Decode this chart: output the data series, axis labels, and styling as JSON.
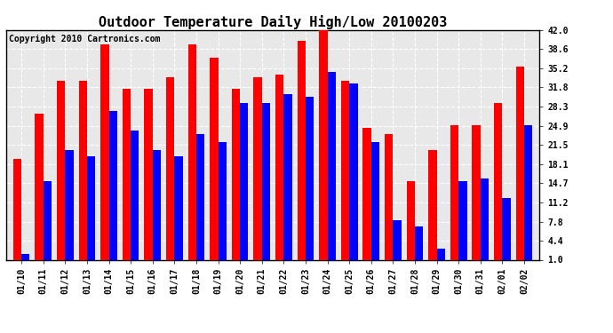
{
  "title": "Outdoor Temperature Daily High/Low 20100203",
  "copyright": "Copyright 2010 Cartronics.com",
  "dates": [
    "01/10",
    "01/11",
    "01/12",
    "01/13",
    "01/14",
    "01/15",
    "01/16",
    "01/17",
    "01/18",
    "01/19",
    "01/20",
    "01/21",
    "01/22",
    "01/23",
    "01/24",
    "01/25",
    "01/26",
    "01/27",
    "01/28",
    "01/29",
    "01/30",
    "01/31",
    "02/01",
    "02/02"
  ],
  "highs": [
    19.0,
    27.0,
    33.0,
    33.0,
    39.5,
    31.5,
    31.5,
    33.5,
    39.5,
    37.0,
    31.5,
    33.5,
    34.0,
    40.0,
    42.5,
    33.0,
    24.5,
    23.5,
    15.0,
    20.5,
    25.0,
    25.0,
    29.0,
    35.5
  ],
  "lows": [
    2.0,
    15.0,
    20.5,
    19.5,
    27.5,
    24.0,
    20.5,
    19.5,
    23.5,
    22.0,
    29.0,
    29.0,
    30.5,
    30.0,
    34.5,
    32.5,
    22.0,
    8.0,
    7.0,
    3.0,
    15.0,
    15.5,
    12.0,
    25.0
  ],
  "high_color": "#ff0000",
  "low_color": "#0000ff",
  "bg_color": "#ffffff",
  "plot_bg_color": "#e8e8e8",
  "grid_color": "#ffffff",
  "ylim_min": 1.0,
  "ylim_max": 42.0,
  "yticks": [
    1.0,
    4.4,
    7.8,
    11.2,
    14.7,
    18.1,
    21.5,
    24.9,
    28.3,
    31.8,
    35.2,
    38.6,
    42.0
  ],
  "title_fontsize": 11,
  "copyright_fontsize": 7,
  "tick_fontsize": 7,
  "bar_width": 0.38,
  "figwidth": 6.9,
  "figheight": 3.75,
  "dpi": 100
}
